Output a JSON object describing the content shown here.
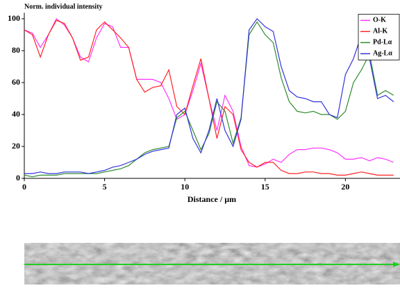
{
  "chart_data": {
    "type": "line",
    "title": "Norm. individual intensity",
    "x_label": "Distance / µm",
    "x": [
      0,
      0.5,
      1,
      1.5,
      2,
      2.5,
      3,
      3.5,
      4,
      4.5,
      5,
      5.5,
      6,
      6.5,
      7,
      7.5,
      8,
      8.5,
      9,
      9.5,
      10,
      10.5,
      11,
      11.5,
      12,
      12.5,
      13,
      13.5,
      14,
      14.5,
      15,
      15.5,
      16,
      16.5,
      17,
      17.5,
      18,
      18.5,
      19,
      19.5,
      20,
      20.5,
      21,
      21.5,
      22,
      22.5,
      23
    ],
    "xlim": [
      0,
      23.4
    ],
    "xticks": [
      0,
      5,
      10,
      15,
      20
    ],
    "ylim": [
      0,
      102
    ],
    "yticks": [
      0,
      20,
      40,
      60,
      80,
      100
    ],
    "legend": "upper right",
    "series": [
      {
        "name": "O-K",
        "color": "#ff33ff",
        "values": [
          93,
          91,
          82,
          90,
          100,
          96,
          88,
          76,
          73,
          88,
          97,
          95,
          82,
          82,
          62,
          62,
          62,
          60,
          50,
          37,
          40,
          55,
          72,
          50,
          30,
          52,
          42,
          20,
          8,
          7,
          9,
          12,
          10,
          15,
          18,
          18,
          19,
          19,
          18,
          16,
          12,
          12,
          13,
          11,
          13,
          12,
          10
        ]
      },
      {
        "name": "Al-K",
        "color": "#ff2222",
        "values": [
          93,
          90,
          76,
          90,
          99,
          97,
          88,
          74,
          76,
          93,
          98,
          93,
          88,
          82,
          62,
          54,
          57,
          58,
          68,
          45,
          40,
          58,
          75,
          50,
          25,
          45,
          40,
          18,
          10,
          7,
          10,
          10,
          5,
          3,
          3,
          4,
          4,
          3,
          3,
          2,
          2,
          3,
          4,
          3,
          2,
          2,
          2
        ]
      },
      {
        "name": "Pd-Lα",
        "color": "#2e8b2e",
        "values": [
          2,
          1,
          2,
          2,
          2,
          3,
          3,
          3,
          3,
          3,
          4,
          5,
          6,
          8,
          12,
          16,
          18,
          19,
          20,
          38,
          42,
          30,
          18,
          28,
          48,
          42,
          22,
          38,
          90,
          98,
          90,
          85,
          63,
          48,
          42,
          41,
          42,
          40,
          40,
          37,
          42,
          60,
          68,
          78,
          52,
          55,
          52
        ]
      },
      {
        "name": "Ag-Lα",
        "color": "#3333dd",
        "values": [
          3,
          3,
          4,
          3,
          3,
          4,
          4,
          4,
          3,
          4,
          5,
          7,
          8,
          10,
          12,
          15,
          17,
          18,
          19,
          40,
          44,
          25,
          16,
          30,
          50,
          30,
          20,
          37,
          93,
          100,
          95,
          92,
          70,
          55,
          51,
          50,
          48,
          48,
          40,
          38,
          65,
          75,
          90,
          75,
          50,
          52,
          48
        ]
      }
    ]
  }
}
